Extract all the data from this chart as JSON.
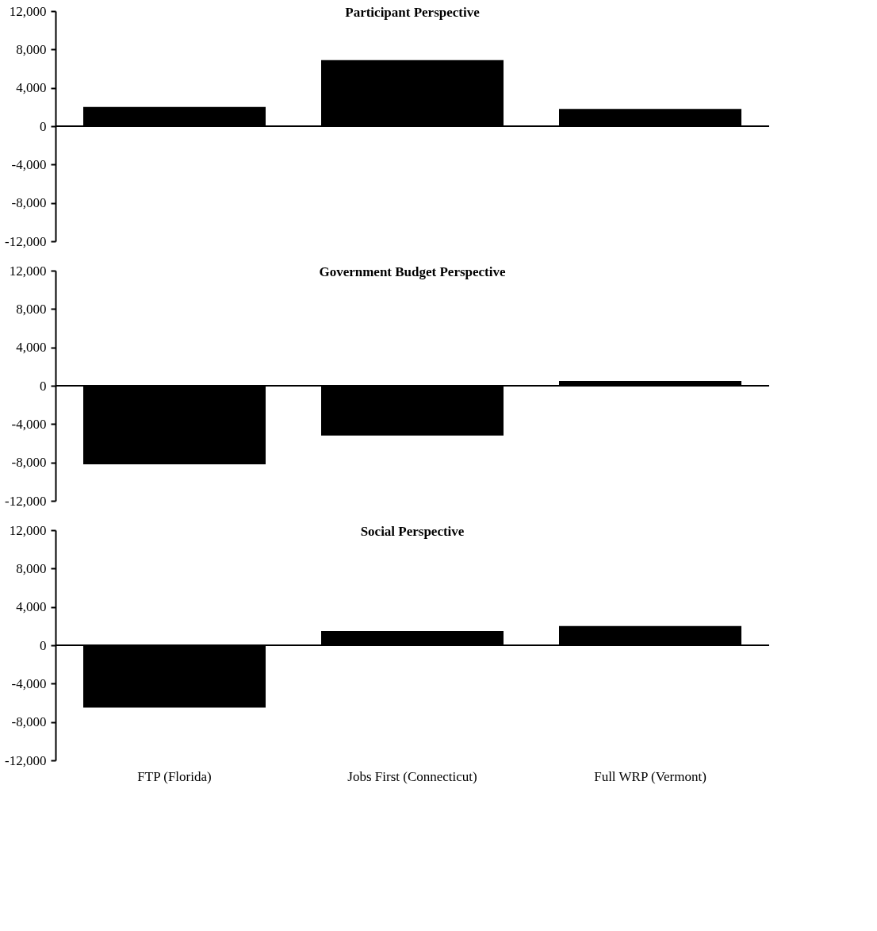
{
  "chart_data": [
    {
      "type": "bar",
      "title": "Participant Perspective",
      "categories": [
        null,
        null,
        null
      ],
      "values": [
        2000,
        6900,
        1800
      ],
      "color": "#000000",
      "ylim": [
        -12000,
        12000
      ],
      "yticks": [
        {
          "value": 12000,
          "label": "12,000"
        },
        {
          "value": 8000,
          "label": "8,000"
        },
        {
          "value": 4000,
          "label": "4,000"
        },
        0,
        {
          "value": -4000,
          "label": "-4,000"
        },
        {
          "value": -8000,
          "label": "-8,000"
        },
        {
          "value": -12000,
          "label": "-12,000"
        }
      ],
      "tick_labels": "y"
    },
    {
      "type": "bar",
      "title": "Government Budget Perspective",
      "categories": [
        null,
        null,
        null
      ],
      "values": [
        -8200,
        -5200,
        500
      ],
      "color": "#000000",
      "ylim": [
        -12000,
        12000
      ],
      "yticks": [
        {
          "value": 12000,
          "label": "12,000"
        },
        {
          "value": 8000,
          "label": "8,000"
        },
        {
          "value": 4000,
          "label": "4,000"
        },
        0,
        {
          "value": -4000,
          "label": "-4,000"
        },
        {
          "value": -8000,
          "label": "-8,000"
        },
        {
          "value": -12000,
          "label": "-12,000"
        }
      ],
      "tick_labels": "y"
    },
    {
      "type": "bar",
      "title": "Social Perspective",
      "categories": [
        "FTP (Florida)",
        "Jobs First (Connecticut)",
        "Full WRP (Vermont)"
      ],
      "values": [
        -6500,
        1500,
        2000
      ],
      "color": "#000000",
      "ylim": [
        -12000,
        12000
      ],
      "yticks": [
        {
          "value": 12000,
          "label": "12,000"
        },
        {
          "value": 8000,
          "label": "8,000"
        },
        {
          "value": 4000,
          "label": "4,000"
        },
        0,
        {
          "value": -4000,
          "label": "-4,000"
        },
        {
          "value": -8000,
          "label": "-8,000"
        },
        {
          "value": -12000,
          "label": "-12,000"
        }
      ]
    }
  ]
}
